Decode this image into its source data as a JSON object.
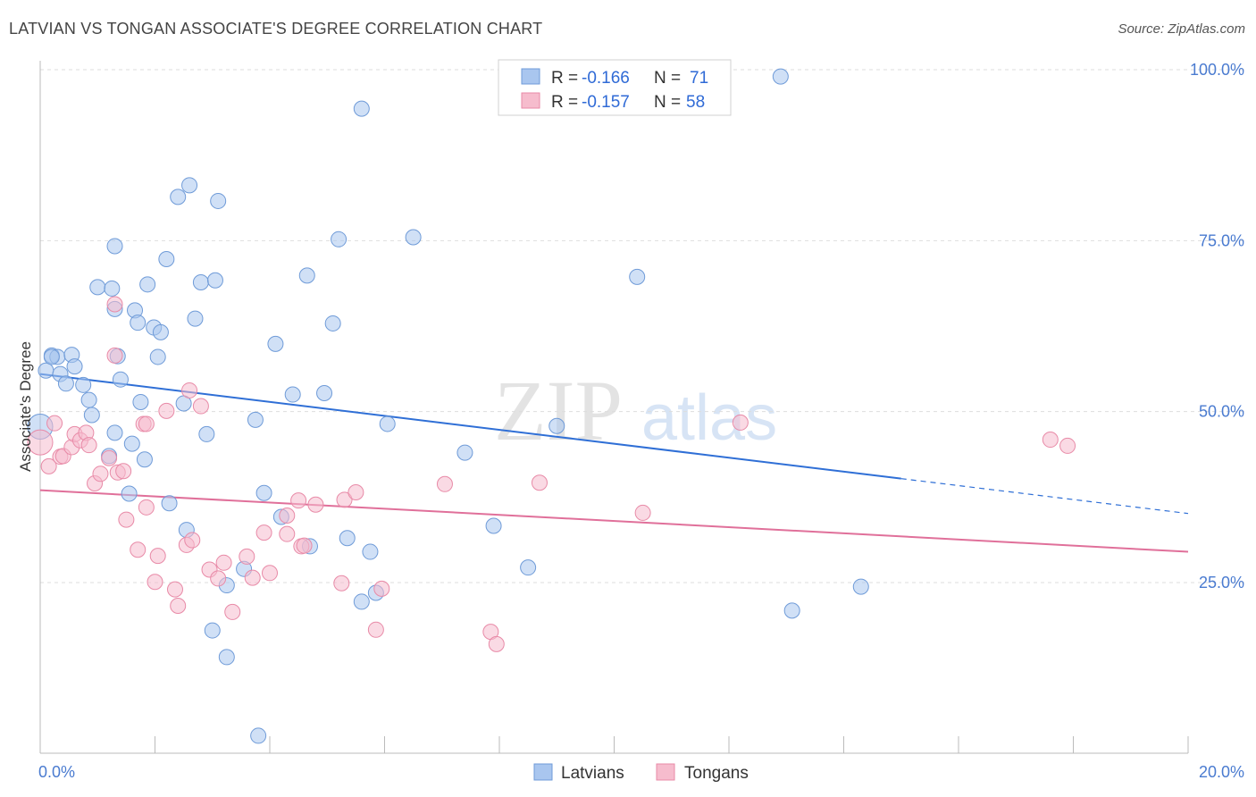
{
  "title": "LATVIAN VS TONGAN ASSOCIATE'S DEGREE CORRELATION CHART",
  "source": "Source: ZipAtlas.com",
  "watermark": {
    "zip": "ZIP",
    "atlas": "atlas"
  },
  "colors": {
    "latvians_fill": "#a9c6ef",
    "latvians_stroke": "#6f9bd8",
    "latvians_line": "#2f6fd6",
    "tongans_fill": "#f6bccd",
    "tongans_stroke": "#e88aa7",
    "tongans_line": "#e0709a",
    "grid": "#dddddd",
    "axis_label": "#4a7bd0"
  },
  "legend": {
    "rows": [
      {
        "r_label": "R =",
        "r_value": "-0.166",
        "n_label": "N =",
        "n_value": "71"
      },
      {
        "r_label": "R =",
        "r_value": "-0.157",
        "n_label": "N =",
        "n_value": "58"
      }
    ]
  },
  "bottom_legend": [
    "Latvians",
    "Tongans"
  ],
  "chart_data": {
    "type": "scatter",
    "title": "LATVIAN VS TONGAN ASSOCIATE'S DEGREE CORRELATION CHART",
    "xlabel": "",
    "ylabel": "Associate's Degree",
    "xlim": [
      0,
      20
    ],
    "ylim": [
      0,
      103
    ],
    "x_tick_labels": [
      "0.0%",
      "20.0%"
    ],
    "y_ticks": [
      25,
      50,
      75,
      100
    ],
    "y_tick_labels": [
      "25.0%",
      "50.0%",
      "75.0%",
      "100.0%"
    ],
    "grid": true,
    "legend_position": "top-center",
    "series": [
      {
        "name": "Latvians",
        "r": -0.166,
        "n": 71,
        "trend": {
          "x0": 0,
          "y0": 55.5,
          "x1": 15.0,
          "y1": 40.2,
          "dashed_to_x": 20,
          "dashed_to_y": 35.1
        },
        "points": [
          [
            0.0,
            47.8
          ],
          [
            0.1,
            56.0
          ],
          [
            0.2,
            58.2
          ],
          [
            0.3,
            58.0
          ],
          [
            0.35,
            55.5
          ],
          [
            0.45,
            54.1
          ],
          [
            0.55,
            58.3
          ],
          [
            0.6,
            56.6
          ],
          [
            0.75,
            53.9
          ],
          [
            0.85,
            51.7
          ],
          [
            0.9,
            49.5
          ],
          [
            1.0,
            68.2
          ],
          [
            1.25,
            68.0
          ],
          [
            1.3,
            65.0
          ],
          [
            1.2,
            43.5
          ],
          [
            1.3,
            46.9
          ],
          [
            1.3,
            74.2
          ],
          [
            1.35,
            58.1
          ],
          [
            1.4,
            54.7
          ],
          [
            1.55,
            38.0
          ],
          [
            1.6,
            45.3
          ],
          [
            1.65,
            64.8
          ],
          [
            1.7,
            63.0
          ],
          [
            1.75,
            51.4
          ],
          [
            1.82,
            43.0
          ],
          [
            1.87,
            68.6
          ],
          [
            1.98,
            62.3
          ],
          [
            2.05,
            58.0
          ],
          [
            2.1,
            61.6
          ],
          [
            2.2,
            72.3
          ],
          [
            2.25,
            36.6
          ],
          [
            2.4,
            81.4
          ],
          [
            2.5,
            51.2
          ],
          [
            2.55,
            32.7
          ],
          [
            2.6,
            83.1
          ],
          [
            2.7,
            63.6
          ],
          [
            2.8,
            68.9
          ],
          [
            2.9,
            46.7
          ],
          [
            3.0,
            18.0
          ],
          [
            3.05,
            69.2
          ],
          [
            3.1,
            80.8
          ],
          [
            3.25,
            14.1
          ],
          [
            3.25,
            24.6
          ],
          [
            3.55,
            27.0
          ],
          [
            3.75,
            48.8
          ],
          [
            3.8,
            2.6
          ],
          [
            3.9,
            38.1
          ],
          [
            4.1,
            59.9
          ],
          [
            4.2,
            34.6
          ],
          [
            4.4,
            52.5
          ],
          [
            4.65,
            69.9
          ],
          [
            4.7,
            30.3
          ],
          [
            4.95,
            52.7
          ],
          [
            5.1,
            62.9
          ],
          [
            5.2,
            75.2
          ],
          [
            5.35,
            31.5
          ],
          [
            5.6,
            94.3
          ],
          [
            5.6,
            22.2
          ],
          [
            5.75,
            29.5
          ],
          [
            5.85,
            23.5
          ],
          [
            6.05,
            48.2
          ],
          [
            6.5,
            75.5
          ],
          [
            7.4,
            44.0
          ],
          [
            7.9,
            33.3
          ],
          [
            8.5,
            27.2
          ],
          [
            9.0,
            47.9
          ],
          [
            10.4,
            69.7
          ],
          [
            12.9,
            99.0
          ],
          [
            13.1,
            20.9
          ],
          [
            14.3,
            24.4
          ],
          [
            0.2,
            58.0
          ]
        ]
      },
      {
        "name": "Tongans",
        "r": -0.157,
        "n": 58,
        "trend": {
          "x0": 0,
          "y0": 38.5,
          "x1": 20,
          "y1": 29.5
        },
        "points": [
          [
            0.0,
            45.5
          ],
          [
            0.15,
            42.0
          ],
          [
            0.25,
            48.3
          ],
          [
            0.35,
            43.4
          ],
          [
            0.4,
            43.5
          ],
          [
            0.55,
            44.8
          ],
          [
            0.6,
            46.7
          ],
          [
            0.7,
            45.8
          ],
          [
            0.8,
            46.9
          ],
          [
            0.85,
            45.1
          ],
          [
            0.95,
            39.5
          ],
          [
            1.05,
            40.9
          ],
          [
            1.2,
            43.2
          ],
          [
            1.3,
            58.2
          ],
          [
            1.3,
            65.7
          ],
          [
            1.35,
            41.1
          ],
          [
            1.45,
            41.3
          ],
          [
            1.5,
            34.2
          ],
          [
            1.7,
            29.8
          ],
          [
            1.8,
            48.2
          ],
          [
            1.85,
            36.0
          ],
          [
            2.0,
            25.1
          ],
          [
            2.05,
            28.9
          ],
          [
            2.2,
            50.1
          ],
          [
            2.35,
            24.0
          ],
          [
            2.4,
            21.6
          ],
          [
            2.55,
            30.5
          ],
          [
            2.65,
            31.2
          ],
          [
            2.6,
            53.1
          ],
          [
            2.8,
            50.8
          ],
          [
            2.95,
            26.9
          ],
          [
            3.1,
            25.6
          ],
          [
            3.2,
            27.9
          ],
          [
            3.35,
            20.7
          ],
          [
            3.6,
            28.8
          ],
          [
            3.7,
            25.7
          ],
          [
            3.9,
            32.3
          ],
          [
            4.0,
            26.4
          ],
          [
            4.3,
            34.8
          ],
          [
            4.3,
            32.1
          ],
          [
            4.5,
            37.0
          ],
          [
            4.55,
            30.3
          ],
          [
            4.8,
            36.4
          ],
          [
            5.25,
            24.9
          ],
          [
            5.3,
            37.1
          ],
          [
            5.5,
            38.2
          ],
          [
            5.95,
            24.1
          ],
          [
            5.85,
            18.1
          ],
          [
            7.05,
            39.4
          ],
          [
            7.85,
            17.8
          ],
          [
            7.95,
            16.0
          ],
          [
            8.7,
            39.6
          ],
          [
            10.5,
            35.2
          ],
          [
            12.2,
            48.4
          ],
          [
            17.6,
            45.9
          ],
          [
            17.9,
            45.0
          ],
          [
            4.6,
            30.4
          ],
          [
            1.85,
            48.2
          ]
        ]
      }
    ]
  }
}
